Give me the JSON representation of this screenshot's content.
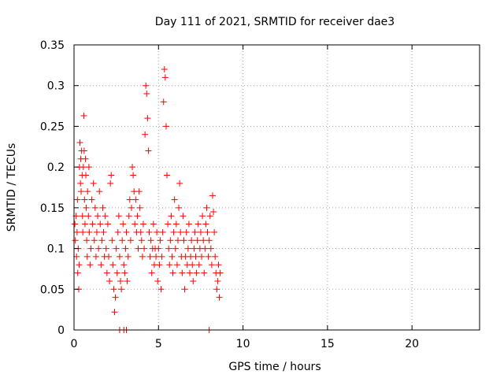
{
  "chart_data": {
    "type": "scatter",
    "title": "Day 111 of 2021, SRMTID for receiver dae3",
    "xlabel": "GPS time / hours",
    "ylabel": "SRMTID / TECUs",
    "xlim": [
      0,
      24
    ],
    "ylim": [
      0,
      0.35
    ],
    "x_ticks": [
      0,
      5,
      10,
      15,
      20
    ],
    "x_tick_labels": [
      "0",
      "5",
      "10",
      "15",
      "20"
    ],
    "y_ticks": [
      0,
      0.05,
      0.1,
      0.15,
      0.2,
      0.25,
      0.3,
      0.35
    ],
    "y_tick_labels": [
      "0",
      "0.05",
      "0.1",
      "0.15",
      "0.2",
      "0.25",
      "0.3",
      "0.35"
    ],
    "grid": true,
    "marker": "+",
    "color": "#ff0000",
    "series": [
      {
        "name": "SRMTID",
        "points": [
          [
            0.05,
            0.13
          ],
          [
            0.08,
            0.11
          ],
          [
            0.12,
            0.14
          ],
          [
            0.15,
            0.09
          ],
          [
            0.18,
            0.12
          ],
          [
            0.2,
            0.16
          ],
          [
            0.22,
            0.07
          ],
          [
            0.25,
            0.1
          ],
          [
            0.28,
            0.05
          ],
          [
            0.3,
            0.08
          ],
          [
            0.32,
            0.2
          ],
          [
            0.35,
            0.23
          ],
          [
            0.38,
            0.18
          ],
          [
            0.4,
            0.21
          ],
          [
            0.42,
            0.17
          ],
          [
            0.45,
            0.22
          ],
          [
            0.48,
            0.19
          ],
          [
            0.5,
            0.14
          ],
          [
            0.52,
            0.12
          ],
          [
            0.55,
            0.2
          ],
          [
            0.58,
            0.263
          ],
          [
            0.6,
            0.22
          ],
          [
            0.62,
            0.16
          ],
          [
            0.65,
            0.13
          ],
          [
            0.68,
            0.21
          ],
          [
            0.7,
            0.19
          ],
          [
            0.72,
            0.15
          ],
          [
            0.75,
            0.11
          ],
          [
            0.78,
            0.09
          ],
          [
            0.8,
            0.17
          ],
          [
            0.85,
            0.14
          ],
          [
            0.88,
            0.2
          ],
          [
            0.9,
            0.12
          ],
          [
            0.95,
            0.08
          ],
          [
            1.0,
            0.1
          ],
          [
            1.05,
            0.16
          ],
          [
            1.1,
            0.13
          ],
          [
            1.15,
            0.18
          ],
          [
            1.2,
            0.11
          ],
          [
            1.25,
            0.15
          ],
          [
            1.3,
            0.09
          ],
          [
            1.35,
            0.12
          ],
          [
            1.4,
            0.14
          ],
          [
            1.45,
            0.1
          ],
          [
            1.5,
            0.17
          ],
          [
            1.55,
            0.13
          ],
          [
            1.6,
            0.08
          ],
          [
            1.65,
            0.11
          ],
          [
            1.7,
            0.15
          ],
          [
            1.75,
            0.12
          ],
          [
            1.8,
            0.09
          ],
          [
            1.85,
            0.14
          ],
          [
            1.9,
            0.1
          ],
          [
            1.95,
            0.07
          ],
          [
            2.0,
            0.13
          ],
          [
            2.05,
            0.09
          ],
          [
            2.1,
            0.06
          ],
          [
            2.15,
            0.18
          ],
          [
            2.2,
            0.19
          ],
          [
            2.25,
            0.11
          ],
          [
            2.3,
            0.08
          ],
          [
            2.35,
            0.05
          ],
          [
            2.4,
            0.022
          ],
          [
            2.45,
            0.04
          ],
          [
            2.5,
            0.1
          ],
          [
            2.55,
            0.07
          ],
          [
            2.6,
            0.12
          ],
          [
            2.65,
            0.14
          ],
          [
            2.7,
            0.09
          ],
          [
            2.75,
            0.06
          ],
          [
            2.8,
            0.05
          ],
          [
            2.85,
            0.11
          ],
          [
            2.9,
            0.13
          ],
          [
            2.95,
            0.08
          ],
          [
            3.0,
            0.07
          ],
          [
            3.05,
            0.1
          ],
          [
            3.1,
            0.12
          ],
          [
            3.15,
            0.06
          ],
          [
            3.2,
            0.09
          ],
          [
            3.25,
            0.14
          ],
          [
            3.3,
            0.16
          ],
          [
            3.35,
            0.11
          ],
          [
            3.4,
            0.15
          ],
          [
            3.45,
            0.2
          ],
          [
            3.5,
            0.19
          ],
          [
            3.55,
            0.17
          ],
          [
            3.6,
            0.13
          ],
          [
            3.65,
            0.16
          ],
          [
            3.7,
            0.12
          ],
          [
            3.75,
            0.14
          ],
          [
            3.8,
            0.1
          ],
          [
            3.85,
            0.17
          ],
          [
            3.9,
            0.15
          ],
          [
            3.95,
            0.12
          ],
          [
            4.0,
            0.11
          ],
          [
            4.05,
            0.09
          ],
          [
            4.1,
            0.13
          ],
          [
            4.15,
            0.1
          ],
          [
            4.2,
            0.24
          ],
          [
            4.25,
            0.3
          ],
          [
            4.3,
            0.29
          ],
          [
            4.35,
            0.26
          ],
          [
            4.4,
            0.22
          ],
          [
            4.45,
            0.12
          ],
          [
            4.5,
            0.09
          ],
          [
            4.55,
            0.11
          ],
          [
            4.6,
            0.07
          ],
          [
            4.65,
            0.1
          ],
          [
            4.7,
            0.13
          ],
          [
            4.75,
            0.08
          ],
          [
            4.8,
            0.1
          ],
          [
            4.85,
            0.09
          ],
          [
            4.9,
            0.12
          ],
          [
            4.95,
            0.06
          ],
          [
            5.0,
            0.1
          ],
          [
            5.05,
            0.08
          ],
          [
            5.1,
            0.11
          ],
          [
            5.15,
            0.05
          ],
          [
            5.2,
            0.09
          ],
          [
            5.25,
            0.12
          ],
          [
            5.3,
            0.28
          ],
          [
            5.35,
            0.32
          ],
          [
            5.4,
            0.31
          ],
          [
            5.45,
            0.25
          ],
          [
            5.5,
            0.19
          ],
          [
            5.55,
            0.13
          ],
          [
            5.6,
            0.1
          ],
          [
            5.65,
            0.08
          ],
          [
            5.7,
            0.11
          ],
          [
            5.75,
            0.14
          ],
          [
            5.8,
            0.09
          ],
          [
            5.85,
            0.07
          ],
          [
            5.9,
            0.12
          ],
          [
            5.95,
            0.16
          ],
          [
            6.0,
            0.1
          ],
          [
            6.05,
            0.13
          ],
          [
            6.1,
            0.08
          ],
          [
            6.15,
            0.11
          ],
          [
            6.2,
            0.15
          ],
          [
            6.25,
            0.18
          ],
          [
            6.3,
            0.12
          ],
          [
            6.35,
            0.09
          ],
          [
            6.4,
            0.07
          ],
          [
            6.45,
            0.14
          ],
          [
            6.5,
            0.11
          ],
          [
            6.55,
            0.05
          ],
          [
            6.6,
            0.09
          ],
          [
            6.65,
            0.12
          ],
          [
            6.7,
            0.08
          ],
          [
            6.75,
            0.1
          ],
          [
            6.8,
            0.13
          ],
          [
            6.85,
            0.07
          ],
          [
            6.9,
            0.09
          ],
          [
            6.95,
            0.11
          ],
          [
            7.0,
            0.08
          ],
          [
            7.05,
            0.06
          ],
          [
            7.1,
            0.1
          ],
          [
            7.15,
            0.12
          ],
          [
            7.2,
            0.09
          ],
          [
            7.25,
            0.07
          ],
          [
            7.3,
            0.11
          ],
          [
            7.35,
            0.13
          ],
          [
            7.4,
            0.08
          ],
          [
            7.45,
            0.1
          ],
          [
            7.5,
            0.12
          ],
          [
            7.55,
            0.09
          ],
          [
            7.6,
            0.14
          ],
          [
            7.65,
            0.11
          ],
          [
            7.7,
            0.07
          ],
          [
            7.75,
            0.1
          ],
          [
            7.8,
            0.13
          ],
          [
            7.85,
            0.15
          ],
          [
            7.9,
            0.12
          ],
          [
            7.95,
            0.09
          ],
          [
            8.0,
            0.11
          ],
          [
            8.05,
            0.14
          ],
          [
            8.1,
            0.1
          ],
          [
            8.15,
            0.08
          ],
          [
            8.2,
            0.165
          ],
          [
            8.25,
            0.145
          ],
          [
            8.3,
            0.12
          ],
          [
            8.35,
            0.09
          ],
          [
            8.4,
            0.07
          ],
          [
            8.45,
            0.05
          ],
          [
            8.5,
            0.06
          ],
          [
            8.55,
            0.08
          ],
          [
            8.6,
            0.04
          ],
          [
            8.65,
            0.07
          ],
          [
            2.7,
            0.0
          ],
          [
            2.95,
            0.0
          ],
          [
            3.1,
            0.0
          ],
          [
            8.0,
            0.0
          ]
        ]
      }
    ]
  }
}
